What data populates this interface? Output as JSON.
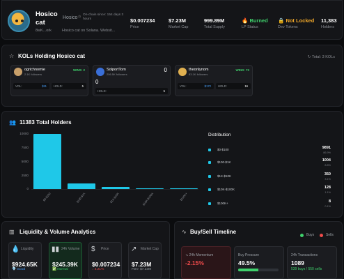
{
  "header": {
    "name": "Hosico cat",
    "symbol": "Hosico",
    "since": "On-chain since: 154 days 3 hours",
    "address": "8wK...ork",
    "description": "Hosico cat on Solana. Websit...",
    "stats": [
      {
        "value": "$0.007234",
        "label": "Price"
      },
      {
        "value": "$7.23M",
        "label": "Market Cap"
      },
      {
        "value": "999.89M",
        "label": "Total Supply"
      },
      {
        "value": "Burned",
        "label": "LP Status",
        "icon": "fire-icon"
      },
      {
        "value": "Not Locked",
        "label": "Dev Tokens",
        "icon": "lock-icon"
      },
      {
        "value": "11,383",
        "label": "Holders"
      }
    ]
  },
  "kols": {
    "title": "KOLs Holding Hosico cat",
    "total": "Total: 3 KOLs",
    "items": [
      {
        "name": "ogrichnomie",
        "followers": "2.1K followers",
        "wins": "WINS: 2",
        "vol_label": "VOL:",
        "vol": "$11",
        "hold_label": "HOLD:",
        "hold": "5",
        "avatar_color": "#c9a06a"
      },
      {
        "name": "SolportTom",
        "followers": "206.5K followers",
        "top": "0",
        "mid": "0",
        "hold_label": "HOLD:",
        "hold": "5",
        "avatar_color": "#3a6fd8"
      },
      {
        "name": "theonlynom",
        "followers": "83.1K followers",
        "wins": "WINS: 72",
        "vol_label": "VOL:",
        "vol": "$172",
        "hold_label": "HOLD:",
        "hold": "16",
        "avatar_color": "#e0b050"
      }
    ]
  },
  "holders": {
    "title": "11383 Total Holders",
    "distribution_title": "Distribution",
    "y_ticks": [
      "10000",
      "7500",
      "5000",
      "2500",
      "0"
    ],
    "rows": [
      {
        "label": "$0-$100",
        "count": "9891",
        "pct": "86.9%"
      },
      {
        "label": "$100-$1K",
        "count": "1004",
        "pct": "8.8%"
      },
      {
        "label": "$1K-$10K",
        "count": "350",
        "pct": "3.1%"
      },
      {
        "label": "$10K-$100K",
        "count": "128",
        "pct": "1.1%"
      },
      {
        "label": "$100K+",
        "count": "8",
        "pct": "0.1%"
      }
    ]
  },
  "chart_data": {
    "type": "bar",
    "title": "11383 Total Holders",
    "categories": [
      "$0-$100",
      "$100-$1K",
      "$1K-$10K",
      "$10K-$100K",
      "$100K+"
    ],
    "values": [
      9891,
      1004,
      350,
      128,
      8
    ],
    "ylim": [
      0,
      10000
    ],
    "color": "#1fc8e8"
  },
  "liquidity": {
    "title": "Liquidity & Volume Analytics",
    "cards": [
      {
        "label": "Liquidity",
        "value": "$924.65K",
        "sub": "💎 Good",
        "sub_class": "blue",
        "icon": "droplet-icon"
      },
      {
        "label": "24h Volume",
        "value": "$245.39K",
        "sub": "✅ Normal",
        "sub_class": "green",
        "icon": "bar-chart-icon"
      },
      {
        "label": "Price",
        "value": "$0.007234",
        "sub": "4.21%",
        "sub_class": "red",
        "icon": "dollar-icon"
      },
      {
        "label": "Market Cap",
        "value": "$7.23M",
        "sub": "FDV: $7.23M",
        "sub_class": "grey",
        "icon": "trending-icon"
      }
    ]
  },
  "buysell": {
    "title": "Buy/Sell Timeline",
    "legend_buys": "Buys",
    "legend_sells": "Sells",
    "buy_color": "#3fd16c",
    "sell_color": "#ef4b4b",
    "momentum_label": "24h Momentum",
    "momentum_value": "-2.15%",
    "pressure_label": "Buy Pressure",
    "pressure_value": "49.5%",
    "pressure_fraction": 0.495,
    "tx_label": "24h Transactions",
    "tx_value": "1089",
    "tx_sub": "539 buys / 550 sells"
  }
}
